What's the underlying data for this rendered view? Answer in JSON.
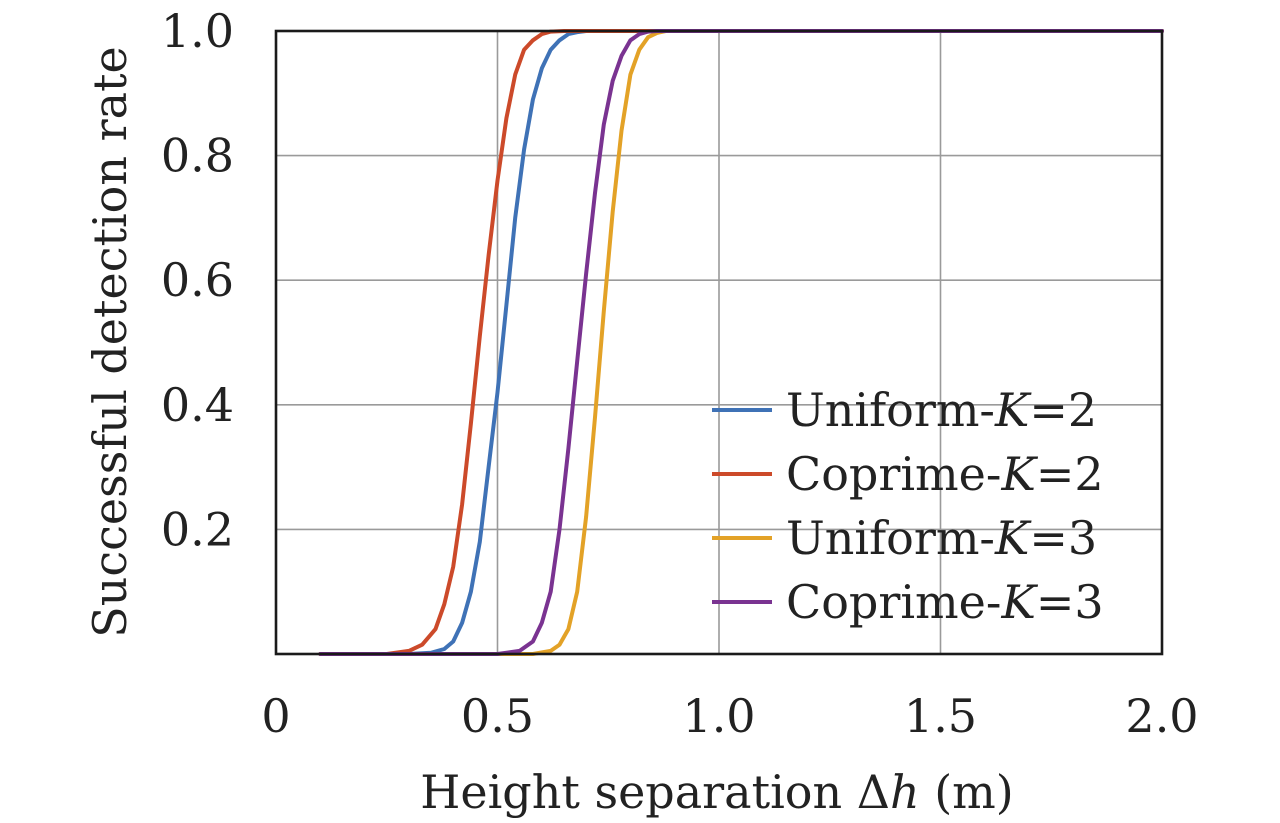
{
  "chart_data": {
    "type": "line",
    "title": "",
    "xlabel": "Height separation Δh (m)",
    "ylabel": "Successful detection rate",
    "xlim": [
      0,
      2.0
    ],
    "ylim": [
      0,
      1.0
    ],
    "x_ticks": [
      {
        "value": 0,
        "label": "0"
      },
      {
        "value": 0.5,
        "label": "0.5"
      },
      {
        "value": 1.0,
        "label": "1.0"
      },
      {
        "value": 1.5,
        "label": "1.5"
      },
      {
        "value": 2.0,
        "label": "2.0"
      }
    ],
    "y_ticks": [
      {
        "value": 0.2,
        "label": "0.2"
      },
      {
        "value": 0.4,
        "label": "0.4"
      },
      {
        "value": 0.6,
        "label": "0.6"
      },
      {
        "value": 0.8,
        "label": "0.8"
      },
      {
        "value": 1.0,
        "label": "1.0"
      }
    ],
    "grid": true,
    "legend_position": "bottom-right",
    "series": [
      {
        "name": "Uniform-K=2",
        "color": "#3f72b6",
        "x": [
          0.1,
          0.3,
          0.35,
          0.38,
          0.4,
          0.42,
          0.44,
          0.46,
          0.48,
          0.5,
          0.52,
          0.54,
          0.56,
          0.58,
          0.6,
          0.62,
          0.64,
          0.66,
          0.68,
          0.7,
          0.75,
          2.0
        ],
        "y": [
          0,
          0,
          0.002,
          0.008,
          0.02,
          0.05,
          0.1,
          0.18,
          0.3,
          0.42,
          0.56,
          0.7,
          0.81,
          0.89,
          0.94,
          0.97,
          0.985,
          0.995,
          0.998,
          1.0,
          1.0,
          1.0
        ]
      },
      {
        "name": "Coprime-K=2",
        "color": "#cc4a2a",
        "x": [
          0.1,
          0.25,
          0.3,
          0.33,
          0.36,
          0.38,
          0.4,
          0.42,
          0.44,
          0.46,
          0.48,
          0.5,
          0.52,
          0.54,
          0.56,
          0.58,
          0.6,
          0.62,
          0.65,
          0.7,
          2.0
        ],
        "y": [
          0,
          0,
          0.005,
          0.015,
          0.04,
          0.08,
          0.14,
          0.24,
          0.37,
          0.51,
          0.64,
          0.76,
          0.86,
          0.93,
          0.97,
          0.985,
          0.995,
          0.999,
          1.0,
          1.0,
          1.0
        ]
      },
      {
        "name": "Uniform-K=3",
        "color": "#e3a227",
        "x": [
          0.1,
          0.58,
          0.62,
          0.64,
          0.66,
          0.68,
          0.7,
          0.72,
          0.74,
          0.76,
          0.78,
          0.8,
          0.82,
          0.84,
          0.86,
          0.88,
          0.9,
          2.0
        ],
        "y": [
          0,
          0,
          0.005,
          0.015,
          0.04,
          0.1,
          0.22,
          0.38,
          0.55,
          0.71,
          0.84,
          0.93,
          0.97,
          0.99,
          0.997,
          1.0,
          1.0,
          1.0
        ]
      },
      {
        "name": "Coprime-K=3",
        "color": "#7a3391",
        "x": [
          0.1,
          0.5,
          0.55,
          0.58,
          0.6,
          0.62,
          0.64,
          0.66,
          0.68,
          0.7,
          0.72,
          0.74,
          0.76,
          0.78,
          0.8,
          0.82,
          0.84,
          0.86,
          0.9,
          2.0
        ],
        "y": [
          0,
          0,
          0.005,
          0.02,
          0.05,
          0.1,
          0.2,
          0.33,
          0.47,
          0.61,
          0.74,
          0.85,
          0.92,
          0.96,
          0.985,
          0.995,
          0.999,
          1.0,
          1.0,
          1.0
        ]
      }
    ],
    "legend": [
      {
        "name": "Uniform-K=2",
        "prefix": "Uniform-",
        "var": "K",
        "suffix": "=2",
        "color": "#3f72b6"
      },
      {
        "name": "Coprime-K=2",
        "prefix": "Coprime-",
        "var": "K",
        "suffix": "=2",
        "color": "#cc4a2a"
      },
      {
        "name": "Uniform-K=3",
        "prefix": "Uniform-",
        "var": "K",
        "suffix": "=3",
        "color": "#e3a227"
      },
      {
        "name": "Coprime-K=3",
        "prefix": "Coprime-",
        "var": "K",
        "suffix": "=3",
        "color": "#7a3391"
      }
    ]
  }
}
